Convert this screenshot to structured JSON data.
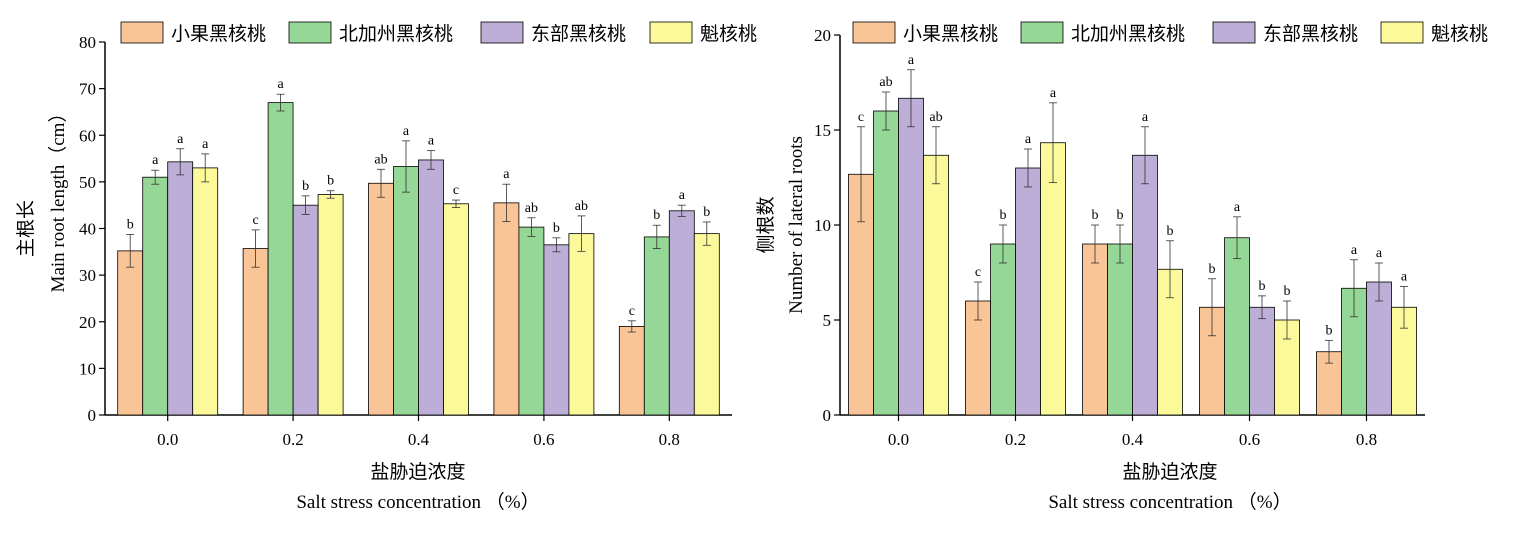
{
  "chart_data": [
    {
      "type": "bar",
      "categories": [
        "0.0",
        "0.2",
        "0.4",
        "0.6",
        "0.8"
      ],
      "ylabel_cn": "主根长",
      "ylabel_en": "Main root length（cm）",
      "xlabel_cn": "盐胁迫浓度",
      "xlabel_en": "Salt stress concentration （%）",
      "ylim": [
        0,
        80
      ],
      "yticks": [
        0,
        10,
        20,
        30,
        40,
        50,
        60,
        70,
        80
      ],
      "legend_position": "top",
      "series": [
        {
          "name": "小果黑核桃",
          "color": "#f9c596",
          "values": [
            35.2,
            35.7,
            49.7,
            45.5,
            19.0
          ],
          "errors": [
            3.5,
            4.0,
            3.0,
            4.0,
            1.2
          ],
          "letters": [
            "b",
            "c",
            "ab",
            "a",
            "c"
          ]
        },
        {
          "name": "北加州黑核桃",
          "color": "#95d796",
          "values": [
            51.0,
            67.0,
            53.3,
            40.3,
            38.2
          ],
          "errors": [
            1.5,
            1.8,
            5.5,
            2.0,
            2.5
          ],
          "letters": [
            "a",
            "a",
            "a",
            "ab",
            "b"
          ]
        },
        {
          "name": "东部黑核桃",
          "color": "#bcaed6",
          "values": [
            54.3,
            45.0,
            54.7,
            36.5,
            43.8
          ],
          "errors": [
            2.8,
            2.0,
            2.0,
            1.5,
            1.2
          ],
          "letters": [
            "a",
            "b",
            "a",
            "b",
            "a"
          ]
        },
        {
          "name": "魁核桃",
          "color": "#fbf99a",
          "values": [
            53.0,
            47.3,
            45.3,
            38.9,
            38.9
          ],
          "errors": [
            3.0,
            0.8,
            0.8,
            3.8,
            2.5
          ],
          "letters": [
            "a",
            "b",
            "c",
            "ab",
            "b"
          ]
        }
      ]
    },
    {
      "type": "bar",
      "categories": [
        "0.0",
        "0.2",
        "0.4",
        "0.6",
        "0.8"
      ],
      "ylabel_cn": "侧根数",
      "ylabel_en": "Number of lateral roots",
      "xlabel_cn": "盐胁迫浓度",
      "xlabel_en": "Salt stress concentration （%）",
      "ylim": [
        0,
        20
      ],
      "yticks": [
        0,
        5,
        10,
        15,
        20
      ],
      "legend_position": "top",
      "series": [
        {
          "name": "小果黑核桃",
          "color": "#f9c596",
          "values": [
            12.67,
            6.0,
            9.0,
            5.67,
            3.33
          ],
          "errors": [
            2.5,
            1.0,
            1.0,
            1.5,
            0.6
          ],
          "letters": [
            "c",
            "c",
            "b",
            "b",
            "b"
          ]
        },
        {
          "name": "北加州黑核桃",
          "color": "#95d796",
          "values": [
            16.0,
            9.0,
            9.0,
            9.33,
            6.67
          ],
          "errors": [
            1.0,
            1.0,
            1.0,
            1.1,
            1.5
          ],
          "letters": [
            "ab",
            "b",
            "b",
            "a",
            "a"
          ]
        },
        {
          "name": "东部黑核桃",
          "color": "#bcaed6",
          "values": [
            16.67,
            13.0,
            13.67,
            5.67,
            7.0
          ],
          "errors": [
            1.5,
            1.0,
            1.5,
            0.6,
            1.0
          ],
          "letters": [
            "a",
            "a",
            "a",
            "b",
            "a"
          ]
        },
        {
          "name": "魁核桃",
          "color": "#fbf99a",
          "values": [
            13.67,
            14.33,
            7.67,
            5.0,
            5.67
          ],
          "errors": [
            1.5,
            2.1,
            1.5,
            1.0,
            1.1
          ],
          "letters": [
            "ab",
            "a",
            "b",
            "b",
            "a"
          ]
        }
      ]
    }
  ]
}
